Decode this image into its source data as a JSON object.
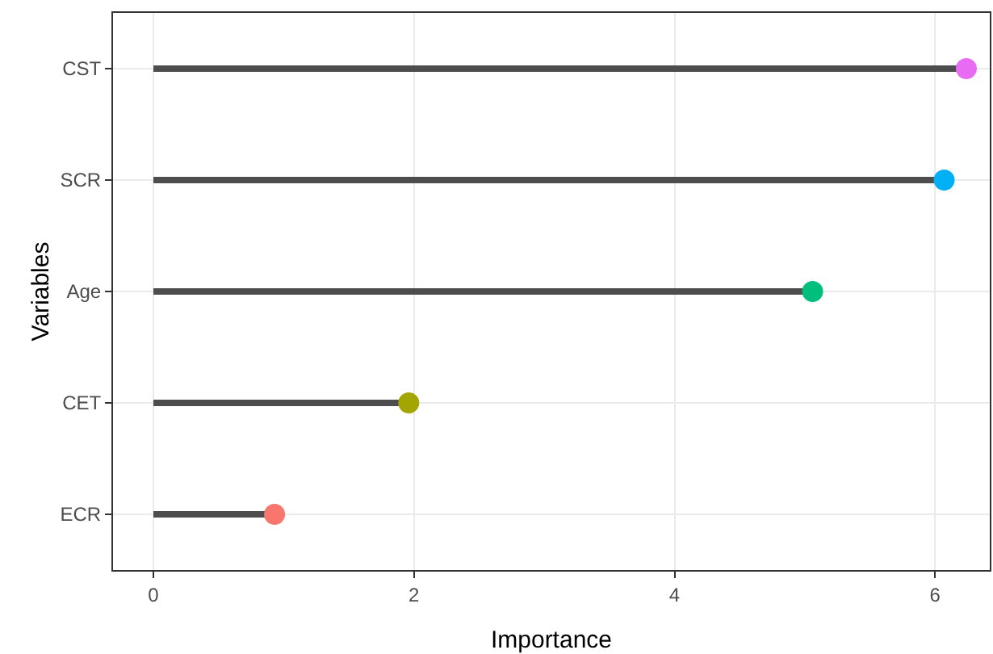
{
  "chart_data": {
    "type": "lollipop",
    "orientation": "horizontal",
    "xlabel": "Importance",
    "ylabel": "Variables",
    "categories": [
      "CST",
      "SCR",
      "Age",
      "CET",
      "ECR"
    ],
    "values": [
      6.24,
      6.07,
      5.06,
      1.96,
      0.93
    ],
    "colors": [
      "#e76bf3",
      "#00b0f6",
      "#00bf7d",
      "#a3a500",
      "#f8766d"
    ],
    "xlim": [
      -0.31,
      6.42
    ],
    "xticks": [
      0,
      2,
      4,
      6
    ],
    "grid": true,
    "marker": "circle"
  }
}
